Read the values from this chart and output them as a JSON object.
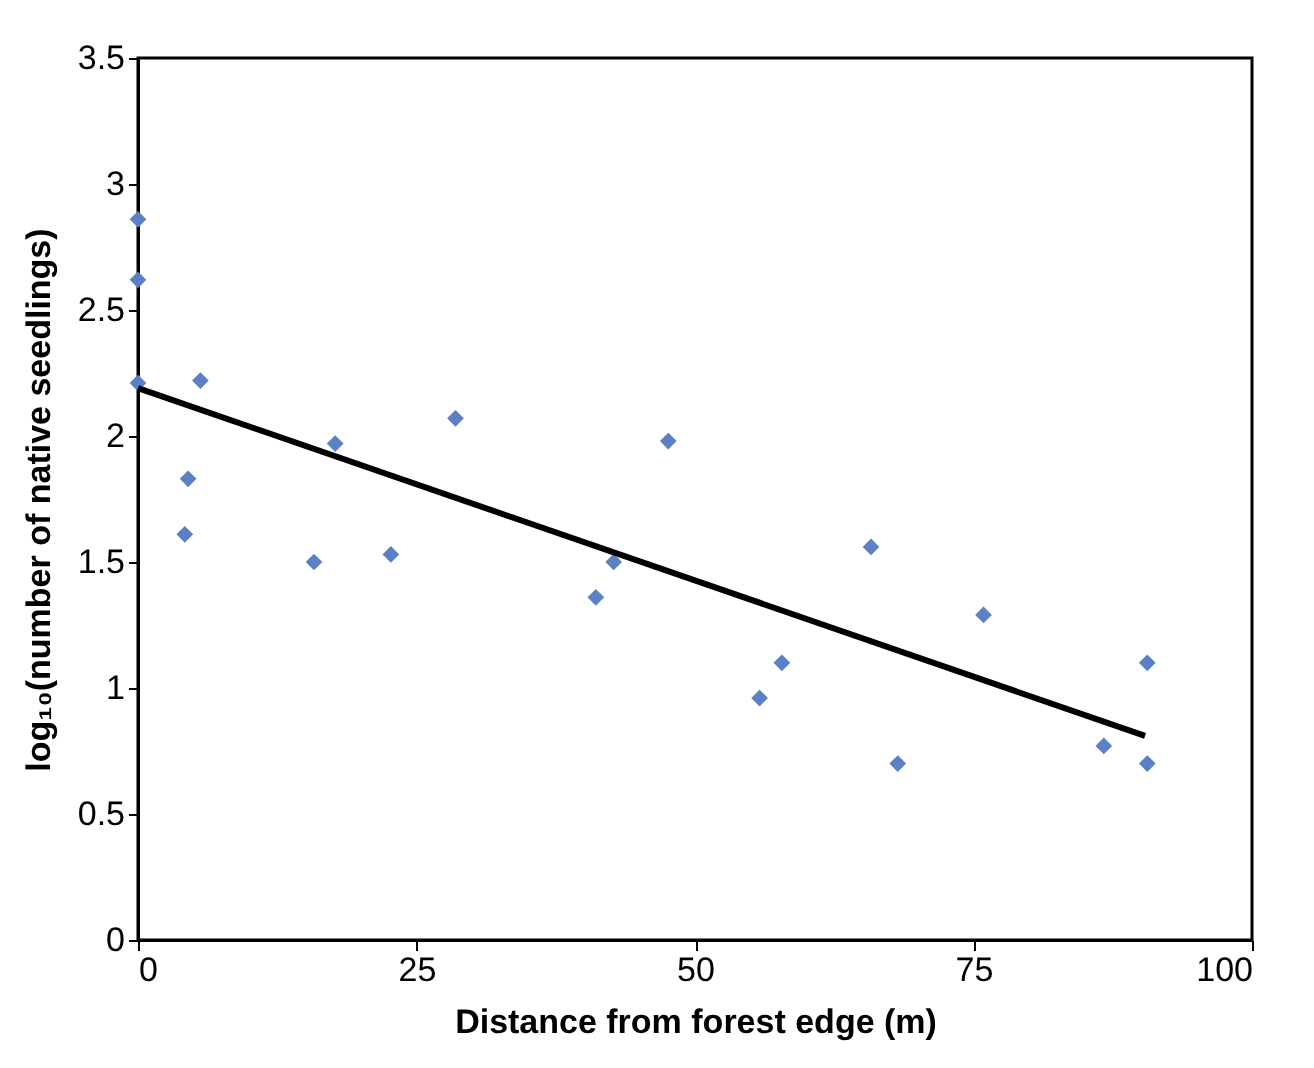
{
  "chart_data": {
    "type": "scatter",
    "xlabel": "Distance from forest edge (m)",
    "ylabel": "log₁₀(number of native seedlings)",
    "xlim": [
      0,
      100
    ],
    "xticks": [
      0,
      25,
      50,
      75,
      100
    ],
    "ylim": [
      0,
      3.5
    ],
    "yticks": [
      0,
      0.5,
      1,
      1.5,
      2,
      2.5,
      3,
      3.5
    ],
    "grid": false,
    "series": [
      {
        "type": "scatter",
        "color": "#5b80c6",
        "marker": "diamond",
        "x": [
          0,
          0,
          0,
          5.6,
          4.5,
          4.2,
          15.8,
          17.7,
          22.7,
          28.5,
          41.1,
          42.7,
          47.6,
          65.8,
          57.8,
          55.8,
          68.2,
          75.9,
          86.7,
          90.6,
          90.6
        ],
        "values": [
          2.86,
          2.62,
          2.21,
          2.22,
          1.83,
          1.61,
          1.5,
          1.97,
          1.53,
          2.07,
          1.36,
          1.5,
          1.98,
          1.56,
          1.1,
          0.96,
          0.7,
          1.29,
          0.77,
          0.7,
          1.1
        ]
      },
      {
        "type": "line",
        "color": "#000000",
        "marker": "none",
        "line_style": "solid",
        "x": [
          0,
          90.4
        ],
        "values": [
          2.19,
          0.81
        ]
      }
    ]
  }
}
